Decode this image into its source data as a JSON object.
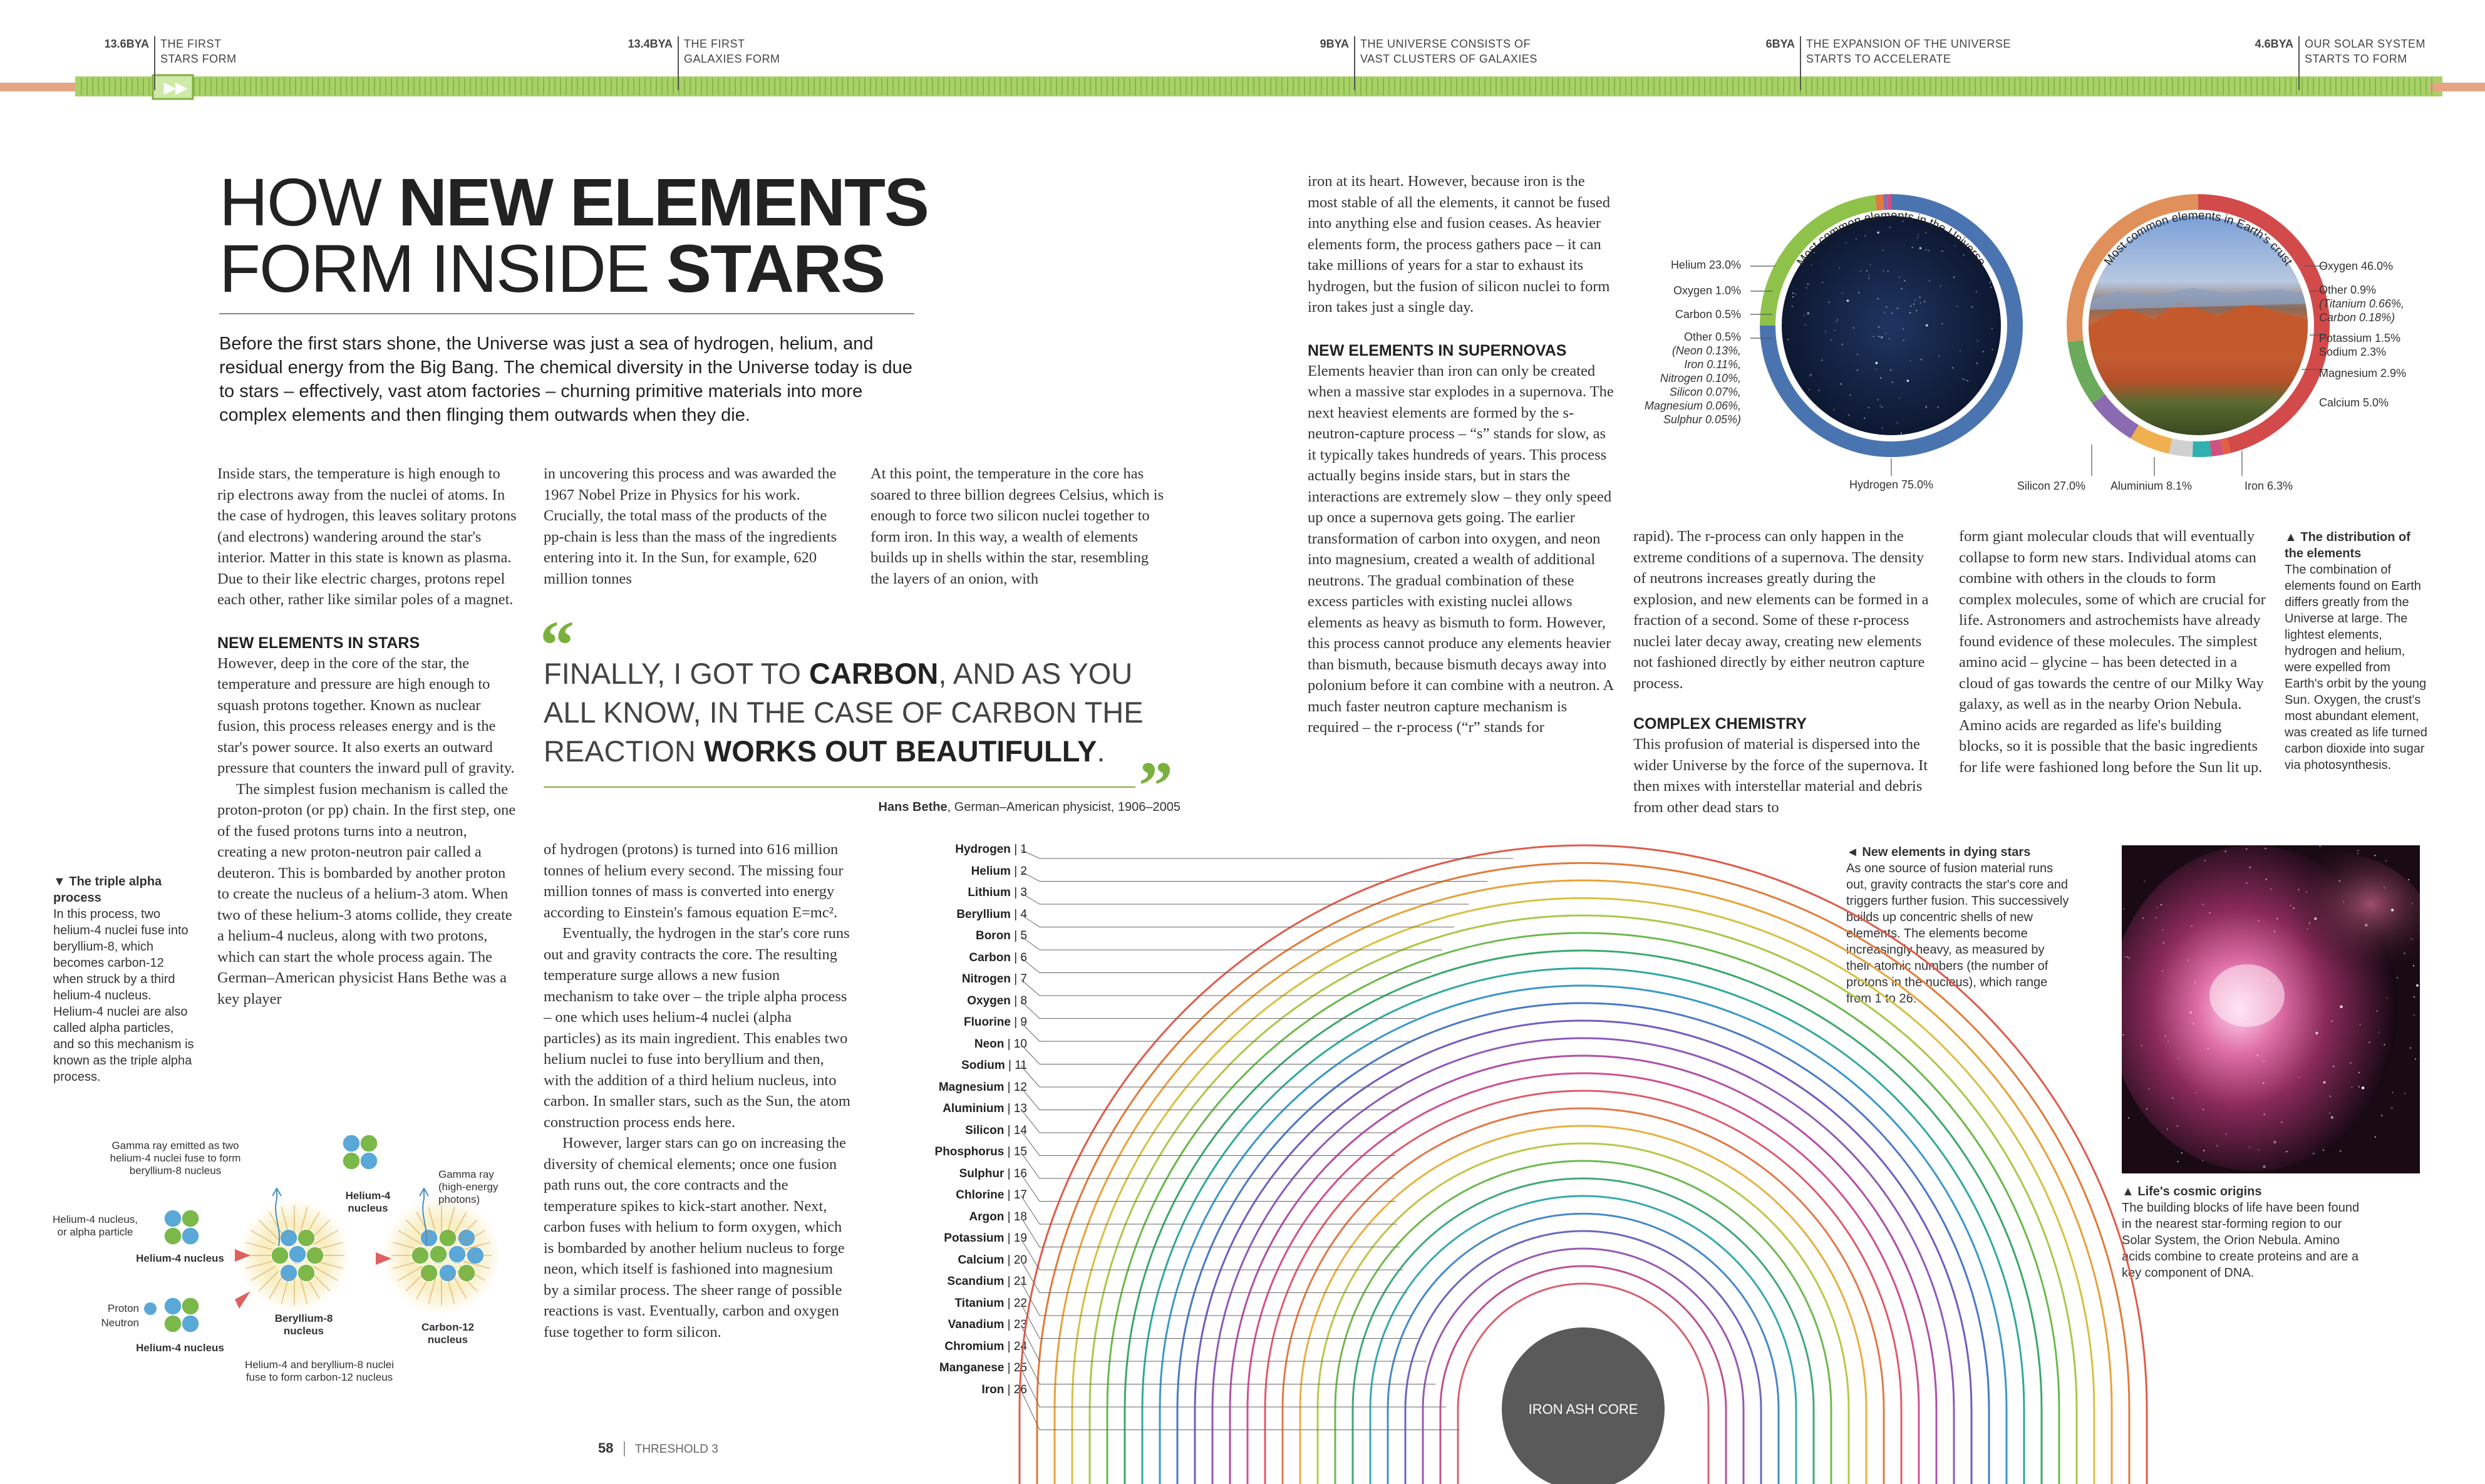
{
  "timeline": {
    "events": [
      {
        "date": "13.6BYA",
        "line1": "THE FIRST",
        "line2": "STARS FORM"
      },
      {
        "date": "13.4BYA",
        "line1": "THE FIRST",
        "line2": "GALAXIES FORM"
      },
      {
        "date": "9BYA",
        "line1": "THE UNIVERSE CONSISTS OF",
        "line2": "VAST CLUSTERS OF GALAXIES"
      },
      {
        "date": "6BYA",
        "line1": "THE EXPANSION OF THE UNIVERSE",
        "line2": "STARTS TO ACCELERATE"
      },
      {
        "date": "4.6BYA",
        "line1": "OUR SOLAR SYSTEM",
        "line2": "STARTS TO FORM"
      }
    ],
    "colors": {
      "bar": "#9ccc5a",
      "left": "#e09a7a",
      "right": "#e09a7a"
    }
  },
  "headline": {
    "line1_light": "HOW ",
    "line1_bold": "NEW ELEMENTS",
    "line2_light": "FORM INSIDE ",
    "line2_bold": "STARS"
  },
  "intro": "Before the first stars shone, the Universe was just a sea of hydrogen, helium, and residual energy from the Big Bang. The chemical diversity in the Universe today is due to stars – effectively, vast atom factories – churning primitive materials into more complex elements and then flinging them outwards when they die.",
  "col1": {
    "p1": "Inside stars, the temperature is high enough to rip electrons away from the nuclei of atoms. In the case of hydrogen, this leaves solitary protons (and electrons) wandering around the star's interior. Matter in this state is known as plasma. Due to their like electric charges, protons repel each other, rather like similar poles of a magnet.",
    "heading": "NEW ELEMENTS IN STARS",
    "p2": "However, deep in the core of the star, the temperature and pressure are high enough to squash protons together. Known as nuclear fusion, this process releases energy and is the star's power source. It also exerts an outward pressure that counters the inward pull of gravity.",
    "p3": "The simplest fusion mechanism is called the proton-proton (or pp) chain. In the first step, one of the fused protons turns into a neutron, creating a new proton-neutron pair called a deuteron. This is bombarded by another proton to create the nucleus of a helium-3 atom. When two of these helium-3 atoms collide, they create a helium-4 nucleus, along with two protons, which can start the whole process again. The German–American physicist Hans Bethe was a key player"
  },
  "col2": {
    "p1": "in uncovering this process and was awarded the 1967 Nobel Prize in Physics for his work. Crucially, the total mass of the products of the pp-chain is less than the mass of the ingredients entering into it. In the Sun, for example, 620 million tonnes",
    "p2": "of hydrogen (protons) is turned into 616 million tonnes of helium every second. The missing four million tonnes of mass is converted into energy according to Einstein's famous equation E=mc².",
    "p3": "Eventually, the hydrogen in the star's core runs out and gravity contracts the core. The resulting temperature surge allows a new fusion mechanism to take over – the triple alpha process – one which uses helium-4 nuclei (alpha particles) as its main ingredient. This enables two helium nuclei to fuse into beryllium and then, with the addition of a third helium nucleus, into carbon. In smaller stars, such as the Sun, the atom construction process ends here.",
    "p4": "However, larger stars can go on increasing the diversity of chemical elements; once one fusion path runs out, the core contracts and the temperature spikes to kick-start another. Next, carbon fuses with helium to form oxygen, which is bombarded by another helium nucleus to forge neon, which itself is fashioned into magnesium by a similar process. The sheer range of possible reactions is vast. Eventually, carbon and oxygen fuse together to form silicon."
  },
  "col3": {
    "p1": "At this point, the temperature in the core has soared to three billion degrees Celsius, which is enough to force two silicon nuclei together to form iron. In this way, a wealth of elements builds up in shells within the star, resembling the layers of an onion, with"
  },
  "quote": {
    "line1a": "FINALLY, I GOT TO ",
    "line1b": "CARBON",
    "line1c": ", AND AS YOU",
    "line2": "ALL KNOW, IN THE CASE OF CARBON THE",
    "line3a": "REACTION ",
    "line3b": "WORKS OUT BEAUTIFULLY",
    "line3c": ".",
    "author": "Hans Bethe",
    "author_desc": ", German–American physicist, 1906–2005"
  },
  "col4": {
    "p1": "iron at its heart. However, because iron is the most stable of all the elements, it cannot be fused into anything else and fusion ceases. As heavier elements form, the process gathers pace – it can take millions of years for a star to exhaust its hydrogen, but the fusion of silicon nuclei to form iron takes just a single day.",
    "heading": "NEW ELEMENTS IN SUPERNOVAS",
    "p2": "Elements heavier than iron can only be created when a massive star explodes in a supernova. The next heaviest elements are formed by the s-neutron-capture process – “s” stands for slow, as it typically takes hundreds of years. This process actually begins inside stars, but in stars the interactions are extremely slow – they only speed up once a supernova gets going. The earlier transformation of carbon into oxygen, and neon into magnesium, created a wealth of additional neutrons. The gradual combination of these excess particles with existing nuclei allows elements as heavy as bismuth to form. However, this process cannot produce any elements heavier than bismuth, because bismuth decays away into polonium before it can combine with a neutron. A much faster neutron capture mechanism is required – the r-process (“r” stands for"
  },
  "col5": {
    "p1": "rapid). The r-process can only happen in the extreme conditions of a supernova. The density of neutrons increases greatly during the explosion, and new elements can be formed in a fraction of a second. Some of these r-process nuclei later decay away, creating new elements not fashioned directly by either neutron capture process.",
    "heading": "COMPLEX CHEMISTRY",
    "p2": "This profusion of material is dispersed into the wider Universe by the force of the supernova. It then mixes with interstellar material and debris from other dead stars to"
  },
  "col6": {
    "p1": "form giant molecular clouds that will eventually collapse to form new stars. Individual atoms can combine with others in the clouds to form complex molecules, some of which are crucial for life. Astronomers and astrochemists have already found evidence of these molecules. The simplest amino acid – glycine – has been detected in a cloud of gas towards the centre of our Milky Way galaxy, as well as in the nearby Orion Nebula. Amino acids are regarded as life's building blocks, so it is possible that the basic ingredients for life were fashioned long before the Sun lit up."
  },
  "captions": {
    "distribution_title": "▲ The distribution of the elements",
    "distribution": "The combination of elements found on Earth differs greatly from the Universe at large. The lightest elements, hydrogen and helium, were expelled from Earth's orbit by the young Sun. Oxygen, the crust's most abundant element, was created as life turned carbon dioxide into sugar via photosynthesis.",
    "triple_title": "▼ The triple alpha process",
    "triple": "In this process, two helium-4 nuclei fuse into beryllium-8, which becomes carbon-12 when struck by a third helium-4 nucleus. Helium-4 nuclei are also called alpha particles, and so this mechanism is known as the triple alpha process.",
    "dying_title": "◄ New elements in dying stars",
    "dying": "As one source of fusion material runs out, gravity contracts the star's core and triggers further fusion. This successively builds up concentric shells of new elements. The elements become increasingly heavy, as measured by their atomic numbers (the number of protons in the nucleus), which range from 1 to 26.",
    "origins_title": "▲ Life's cosmic origins",
    "origins": "The building blocks of life have been found in the nearest star-forming region to our Solar System, the Orion Nebula. Amino acids combine to create proteins and are a key component of DNA."
  },
  "pies": {
    "universe_title": "Most common elements in the Universe",
    "earth_title": "Most common elements in Earth's crust",
    "universe": {
      "helium": "Helium 23.0%",
      "oxygen": "Oxygen 1.0%",
      "carbon": "Carbon 0.5%",
      "other": "Other 0.5%",
      "neon": "(Neon 0.13%,",
      "iron": "Iron 0.11%,",
      "nitrogen": "Nitrogen 0.10%,",
      "silicon": "Silicon 0.07%,",
      "magnesium": "Magnesium 0.06%,",
      "sulphur": "Sulphur 0.05%)",
      "hydrogen": "Hydrogen 75.0%"
    },
    "earth": {
      "oxygen": "Oxygen 46.0%",
      "other": "Other 0.9%",
      "titanium": "(Titanium 0.66%,",
      "carbon": "Carbon 0.18%)",
      "potassium": "Potassium 1.5%",
      "sodium": "Sodium 2.3%",
      "magnesium": "Magnesium 2.9%",
      "calcium": "Calcium 5.0%",
      "silicon": "Silicon 27.0%",
      "aluminium": "Aluminium 8.1%",
      "iron": "Iron 6.3%"
    },
    "colors": {
      "hydrogen": "#4a74b0",
      "helium": "#8fc24a",
      "oxygen": "#e07a40",
      "silicon": "#e0905a",
      "earth_oxygen": "#d24a4a",
      "aluminium": "#6aaa5a",
      "iron": "#8a6ab0",
      "calcium": "#f0b050",
      "magnesium": "#d0d0d0",
      "sodium": "#30b0b0",
      "potassium": "#d05080"
    }
  },
  "elements": [
    {
      "name": "Hydrogen",
      "num": "1"
    },
    {
      "name": "Helium",
      "num": "2"
    },
    {
      "name": "Lithium",
      "num": "3"
    },
    {
      "name": "Beryllium",
      "num": "4"
    },
    {
      "name": "Boron",
      "num": "5"
    },
    {
      "name": "Carbon",
      "num": "6"
    },
    {
      "name": "Nitrogen",
      "num": "7"
    },
    {
      "name": "Oxygen",
      "num": "8"
    },
    {
      "name": "Fluorine",
      "num": "9"
    },
    {
      "name": "Neon",
      "num": "10"
    },
    {
      "name": "Sodium",
      "num": "11"
    },
    {
      "name": "Magnesium",
      "num": "12"
    },
    {
      "name": "Aluminium",
      "num": "13"
    },
    {
      "name": "Silicon",
      "num": "14"
    },
    {
      "name": "Phosphorus",
      "num": "15"
    },
    {
      "name": "Sulphur",
      "num": "16"
    },
    {
      "name": "Chlorine",
      "num": "17"
    },
    {
      "name": "Argon",
      "num": "18"
    },
    {
      "name": "Potassium",
      "num": "19"
    },
    {
      "name": "Calcium",
      "num": "20"
    },
    {
      "name": "Scandium",
      "num": "21"
    },
    {
      "name": "Titanium",
      "num": "22"
    },
    {
      "name": "Vanadium",
      "num": "23"
    },
    {
      "name": "Chromium",
      "num": "24"
    },
    {
      "name": "Manganese",
      "num": "25"
    },
    {
      "name": "Iron",
      "num": "26"
    }
  ],
  "core_label": "IRON ASH CORE",
  "diagram": {
    "gamma1": "Gamma ray emitted as two helium-4 nuclei fuse to form beryllium-8 nucleus",
    "he4_nucleus_label": "Helium-4 nucleus, or alpha particle",
    "he4_a": "Helium-4 nucleus",
    "proton": "Proton",
    "neutron": "Neutron",
    "he4_b": "Helium-4 nucleus",
    "be8": "Beryllium-8 nucleus",
    "he4_top": "Helium-4 nucleus",
    "gamma2": "Gamma ray (high-energy photons)",
    "c12": "Carbon-12 nucleus",
    "fuse_note": "Helium-4 and beryllium-8 nuclei fuse to form carbon-12 nucleus"
  },
  "footer": {
    "page": "58",
    "section": "THRESHOLD 3"
  }
}
